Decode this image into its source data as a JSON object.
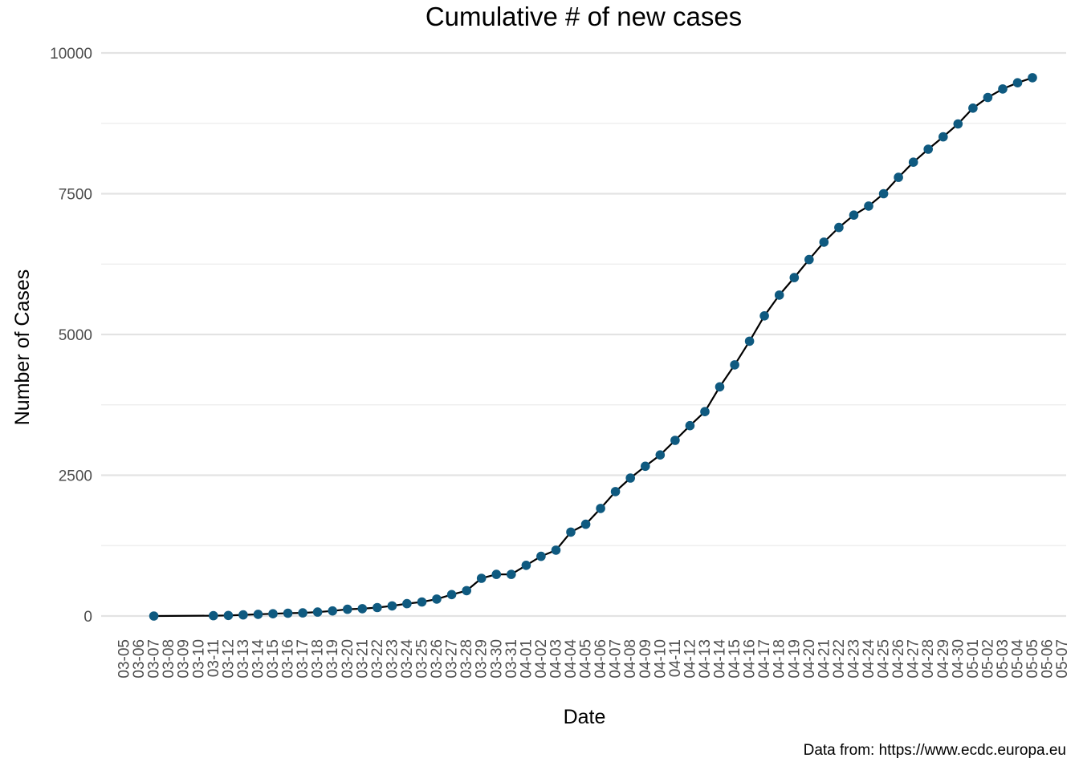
{
  "chart_data": {
    "type": "line",
    "title": "Cumulative # of new cases",
    "xlabel": "Date",
    "ylabel": "Number of Cases",
    "caption": "Data from: https://www.ecdc.europa.eu",
    "x_ticks": [
      "03-05",
      "03-06",
      "03-07",
      "03-08",
      "03-09",
      "03-10",
      "03-11",
      "03-12",
      "03-13",
      "03-14",
      "03-15",
      "03-16",
      "03-17",
      "03-18",
      "03-19",
      "03-20",
      "03-21",
      "03-22",
      "03-23",
      "03-24",
      "03-25",
      "03-26",
      "03-27",
      "03-28",
      "03-29",
      "03-30",
      "03-31",
      "04-01",
      "04-02",
      "04-03",
      "04-04",
      "04-05",
      "04-06",
      "04-07",
      "04-08",
      "04-09",
      "04-10",
      "04-11",
      "04-12",
      "04-13",
      "04-14",
      "04-15",
      "04-16",
      "04-17",
      "04-18",
      "04-19",
      "04-20",
      "04-21",
      "04-22",
      "04-23",
      "04-24",
      "04-25",
      "04-26",
      "04-27",
      "04-28",
      "04-29",
      "04-30",
      "05-01",
      "05-02",
      "05-03",
      "05-04",
      "05-05",
      "05-06",
      "05-07"
    ],
    "y_ticks": [
      0,
      2500,
      5000,
      7500,
      10000
    ],
    "ylim": [
      -300,
      10150
    ],
    "grid": true,
    "series": [
      {
        "color": "#0f5a80",
        "line_color": "#000000",
        "x": [
          "03-07",
          "03-11",
          "03-12",
          "03-13",
          "03-14",
          "03-15",
          "03-16",
          "03-17",
          "03-18",
          "03-19",
          "03-20",
          "03-21",
          "03-22",
          "03-23",
          "03-24",
          "03-25",
          "03-26",
          "03-27",
          "03-28",
          "03-29",
          "03-30",
          "03-31",
          "04-01",
          "04-02",
          "04-03",
          "04-04",
          "04-05",
          "04-06",
          "04-07",
          "04-08",
          "04-09",
          "04-10",
          "04-11",
          "04-12",
          "04-13",
          "04-14",
          "04-15",
          "04-16",
          "04-17",
          "04-18",
          "04-19",
          "04-20",
          "04-21",
          "04-22",
          "04-23",
          "04-24",
          "04-25",
          "04-26",
          "04-27",
          "04-28",
          "04-29",
          "04-30",
          "05-01",
          "05-02",
          "05-03",
          "05-04",
          "05-05"
        ],
        "values": [
          0,
          5,
          10,
          20,
          30,
          40,
          50,
          55,
          70,
          90,
          120,
          130,
          150,
          180,
          220,
          250,
          300,
          380,
          450,
          670,
          740,
          740,
          900,
          1060,
          1170,
          1490,
          1630,
          1910,
          2210,
          2450,
          2660,
          2860,
          3120,
          3380,
          3630,
          4070,
          4460,
          4880,
          5330,
          5700,
          6010,
          6330,
          6640,
          6900,
          7120,
          7280,
          7500,
          7790,
          8060,
          8290,
          8510,
          8740,
          9020,
          9210,
          9360,
          9470,
          9560
        ]
      }
    ]
  }
}
